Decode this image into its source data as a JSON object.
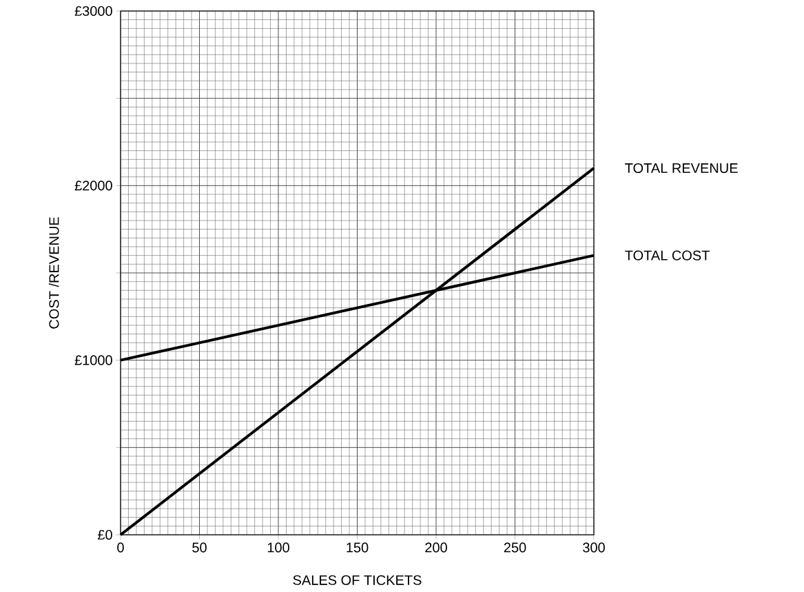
{
  "chart_data": {
    "type": "line",
    "xlabel": "SALES OF TICKETS",
    "ylabel": "COST /REVENUE",
    "x": [
      0,
      300
    ],
    "series": [
      {
        "name": "TOTAL REVENUE",
        "color": "#000000",
        "values": [
          0,
          2100
        ]
      },
      {
        "name": "TOTAL COST",
        "color": "#000000",
        "values": [
          1000,
          1600
        ]
      }
    ],
    "xlim": [
      0,
      300
    ],
    "xticks": [
      0,
      50,
      100,
      150,
      200,
      250,
      300
    ],
    "ylim": [
      0,
      3000
    ],
    "yticks": [
      {
        "value": 0,
        "label": "£0"
      },
      {
        "value": 500,
        "label": null
      },
      {
        "value": 1000,
        "label": "£1000"
      },
      {
        "value": 1500,
        "label": null
      },
      {
        "value": 2000,
        "label": "£2000"
      },
      {
        "value": 2500,
        "label": null
      },
      {
        "value": 3000,
        "label": "£3000"
      }
    ],
    "grid": true,
    "legend": false,
    "marker": "none",
    "line_style": "solid"
  }
}
